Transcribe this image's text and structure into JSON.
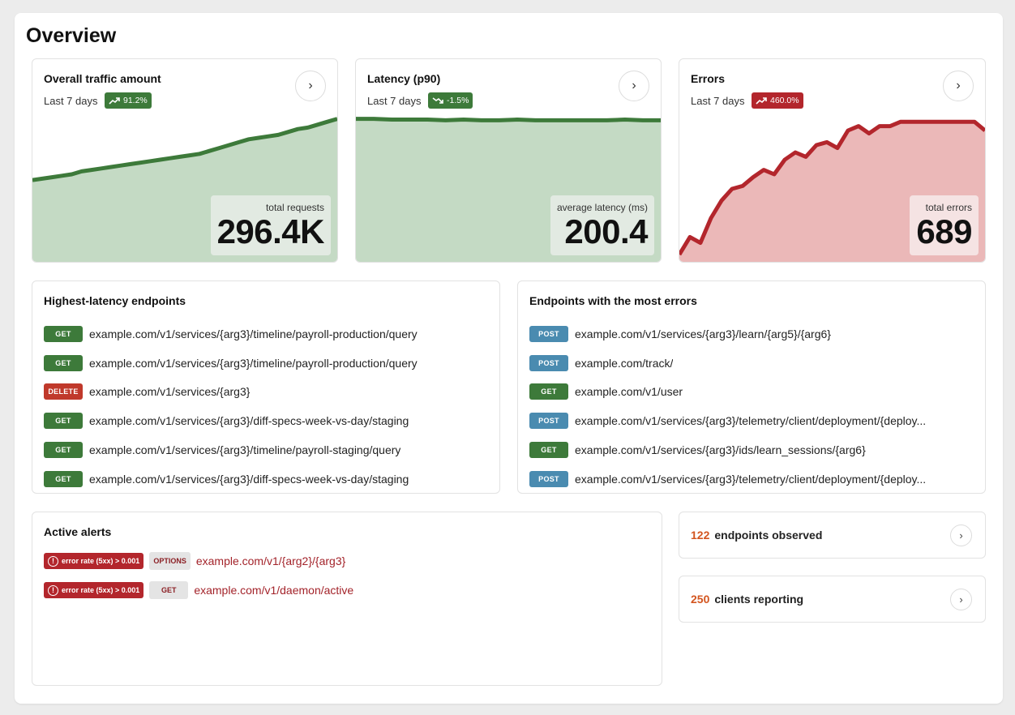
{
  "page": {
    "title": "Overview"
  },
  "metrics": [
    {
      "title": "Overall traffic amount",
      "period": "Last 7 days",
      "badge": {
        "text": "91.2%",
        "trend": "up",
        "color": "#3d7a3a"
      },
      "value_label": "total requests",
      "value": "296.4K",
      "line_color": "#3d7a3a",
      "fill_color": "#c4dac4",
      "series_fraction": [
        0.56,
        0.57,
        0.58,
        0.59,
        0.6,
        0.62,
        0.63,
        0.64,
        0.65,
        0.66,
        0.67,
        0.68,
        0.69,
        0.7,
        0.71,
        0.72,
        0.73,
        0.74,
        0.76,
        0.78,
        0.8,
        0.82,
        0.84,
        0.85,
        0.86,
        0.87,
        0.89,
        0.91,
        0.92,
        0.94,
        0.96,
        0.98
      ]
    },
    {
      "title": "Latency (p90)",
      "period": "Last 7 days",
      "badge": {
        "text": "-1.5%",
        "trend": "down",
        "color": "#3d7a3a"
      },
      "value_label": "average latency (ms)",
      "value": "200.4",
      "line_color": "#3d7a3a",
      "fill_color": "#c4dac4",
      "series_fraction": [
        0.98,
        0.98,
        0.975,
        0.975,
        0.975,
        0.97,
        0.975,
        0.97,
        0.97,
        0.975,
        0.97,
        0.97,
        0.97,
        0.97,
        0.97,
        0.975,
        0.97,
        0.97
      ]
    },
    {
      "title": "Errors",
      "period": "Last 7 days",
      "badge": {
        "text": "460.0%",
        "trend": "up",
        "color": "#b3262c"
      },
      "value_label": "total errors",
      "value": "689",
      "line_color": "#b3262c",
      "fill_color": "#ebb8b8",
      "series_fraction": [
        0.05,
        0.17,
        0.13,
        0.3,
        0.42,
        0.5,
        0.52,
        0.58,
        0.63,
        0.6,
        0.7,
        0.75,
        0.72,
        0.8,
        0.82,
        0.78,
        0.9,
        0.93,
        0.88,
        0.93,
        0.93,
        0.96,
        0.96,
        0.96,
        0.96,
        0.96,
        0.96,
        0.96,
        0.96,
        0.9
      ]
    }
  ],
  "highest_latency": {
    "title": "Highest-latency endpoints",
    "rows": [
      {
        "method": "GET",
        "path": "example.com/v1/services/{arg3}/timeline/payroll-production/query"
      },
      {
        "method": "GET",
        "path": "example.com/v1/services/{arg3}/timeline/payroll-production/query"
      },
      {
        "method": "DELETE",
        "path": "example.com/v1/services/{arg3}"
      },
      {
        "method": "GET",
        "path": "example.com/v1/services/{arg3}/diff-specs-week-vs-day/staging"
      },
      {
        "method": "GET",
        "path": "example.com/v1/services/{arg3}/timeline/payroll-staging/query"
      },
      {
        "method": "GET",
        "path": "example.com/v1/services/{arg3}/diff-specs-week-vs-day/staging"
      }
    ]
  },
  "most_errors": {
    "title": "Endpoints with the most errors",
    "rows": [
      {
        "method": "POST",
        "path": "example.com/v1/services/{arg3}/learn/{arg5}/{arg6}"
      },
      {
        "method": "POST",
        "path": "example.com/track/"
      },
      {
        "method": "GET",
        "path": "example.com/v1/user"
      },
      {
        "method": "POST",
        "path": "example.com/v1/services/{arg3}/telemetry/client/deployment/{deploy..."
      },
      {
        "method": "GET",
        "path": "example.com/v1/services/{arg3}/ids/learn_sessions/{arg6}"
      },
      {
        "method": "POST",
        "path": "example.com/v1/services/{arg3}/telemetry/client/deployment/{deploy..."
      }
    ]
  },
  "alerts": {
    "title": "Active alerts",
    "rows": [
      {
        "condition": "error rate (5xx) > 0.001",
        "method": "OPTIONS",
        "path": "example.com/v1/{arg2}/{arg3}"
      },
      {
        "condition": "error rate (5xx) > 0.001",
        "method": "GET",
        "path": "example.com/v1/daemon/active"
      }
    ]
  },
  "stats": [
    {
      "number": "122",
      "label": "endpoints observed"
    },
    {
      "number": "250",
      "label": "clients reporting"
    }
  ]
}
